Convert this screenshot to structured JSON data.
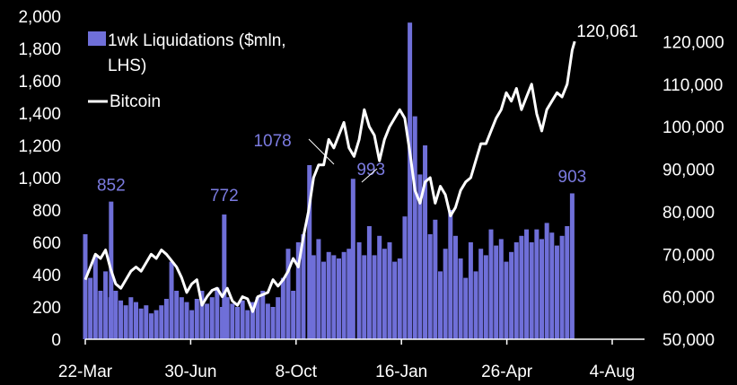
{
  "chart_data": {
    "type": "bar+line",
    "title": "",
    "x_tick_labels": [
      "22-Mar",
      "30-Jun",
      "8-Oct",
      "16-Jan",
      "26-Apr",
      "4-Aug"
    ],
    "y_left": {
      "ticks": [
        "0",
        "200",
        "400",
        "600",
        "800",
        "1,000",
        "1,200",
        "1,400",
        "1,600",
        "1,800",
        "2,000"
      ],
      "range": [
        0,
        2000
      ]
    },
    "y_right": {
      "ticks": [
        "50,000",
        "60,000",
        "70,000",
        "80,000",
        "90,000",
        "100,000",
        "110,000",
        "120,000"
      ],
      "range": [
        50000,
        126000
      ]
    },
    "legend": [
      {
        "label": "1wk Liquidations ($mln,",
        "label2": "LHS)",
        "color": "#6f6fd8",
        "kind": "bar"
      },
      {
        "label": "Bitcoin",
        "color": "#ffffff",
        "kind": "line"
      }
    ],
    "annotations": [
      {
        "text": "852",
        "x": 0.051
      },
      {
        "text": "772",
        "x": 0.274
      },
      {
        "text": "1078",
        "x": 0.442
      },
      {
        "text": "993",
        "x": 0.528
      },
      {
        "text": "903",
        "x": 0.96
      },
      {
        "text": "120,061",
        "x": 0.965
      }
    ],
    "series": [
      {
        "name": "1wk Liquidations ($mln, LHS)",
        "axis": "left",
        "x": [
          0.0,
          0.01,
          0.02,
          0.03,
          0.04,
          0.05,
          0.051,
          0.06,
          0.07,
          0.08,
          0.09,
          0.1,
          0.11,
          0.12,
          0.13,
          0.14,
          0.15,
          0.16,
          0.17,
          0.18,
          0.19,
          0.2,
          0.21,
          0.22,
          0.23,
          0.24,
          0.25,
          0.26,
          0.27,
          0.274,
          0.28,
          0.29,
          0.3,
          0.31,
          0.32,
          0.33,
          0.34,
          0.35,
          0.36,
          0.37,
          0.38,
          0.39,
          0.4,
          0.41,
          0.42,
          0.43,
          0.442,
          0.45,
          0.46,
          0.47,
          0.48,
          0.49,
          0.5,
          0.51,
          0.52,
          0.528,
          0.54,
          0.55,
          0.56,
          0.57,
          0.58,
          0.59,
          0.6,
          0.61,
          0.62,
          0.63,
          0.64,
          0.65,
          0.66,
          0.67,
          0.68,
          0.69,
          0.7,
          0.71,
          0.72,
          0.73,
          0.74,
          0.75,
          0.76,
          0.77,
          0.78,
          0.79,
          0.8,
          0.81,
          0.82,
          0.83,
          0.84,
          0.85,
          0.86,
          0.87,
          0.88,
          0.89,
          0.9,
          0.91,
          0.92,
          0.93,
          0.94,
          0.95,
          0.96
        ],
        "values": [
          650,
          380,
          520,
          300,
          420,
          260,
          852,
          300,
          240,
          210,
          260,
          230,
          190,
          210,
          160,
          180,
          210,
          250,
          480,
          300,
          260,
          230,
          180,
          250,
          300,
          220,
          260,
          320,
          200,
          772,
          260,
          220,
          200,
          240,
          180,
          230,
          260,
          300,
          220,
          200,
          260,
          380,
          560,
          300,
          600,
          650,
          1078,
          520,
          620,
          480,
          540,
          520,
          500,
          540,
          560,
          993,
          600,
          520,
          700,
          520,
          640,
          560,
          600,
          480,
          500,
          760,
          1960,
          1380,
          1020,
          1200,
          650,
          740,
          420,
          560,
          800,
          640,
          500,
          380,
          600,
          420,
          560,
          520,
          680,
          580,
          620,
          480,
          540,
          600,
          640,
          680,
          600,
          680,
          620,
          720,
          660,
          580,
          640,
          700,
          903
        ],
        "color": "#6f6fd8"
      },
      {
        "name": "Bitcoin",
        "axis": "right",
        "x": [
          0.0,
          0.01,
          0.02,
          0.03,
          0.04,
          0.05,
          0.06,
          0.07,
          0.08,
          0.09,
          0.1,
          0.11,
          0.12,
          0.13,
          0.14,
          0.15,
          0.16,
          0.17,
          0.18,
          0.19,
          0.2,
          0.21,
          0.22,
          0.23,
          0.24,
          0.25,
          0.26,
          0.27,
          0.28,
          0.29,
          0.3,
          0.31,
          0.32,
          0.33,
          0.34,
          0.35,
          0.36,
          0.37,
          0.38,
          0.39,
          0.4,
          0.41,
          0.42,
          0.43,
          0.44,
          0.45,
          0.46,
          0.47,
          0.48,
          0.49,
          0.5,
          0.51,
          0.52,
          0.53,
          0.54,
          0.55,
          0.56,
          0.57,
          0.58,
          0.59,
          0.6,
          0.61,
          0.62,
          0.63,
          0.64,
          0.65,
          0.66,
          0.67,
          0.68,
          0.69,
          0.7,
          0.71,
          0.72,
          0.73,
          0.74,
          0.75,
          0.76,
          0.77,
          0.78,
          0.79,
          0.8,
          0.81,
          0.82,
          0.83,
          0.84,
          0.85,
          0.86,
          0.87,
          0.88,
          0.89,
          0.9,
          0.91,
          0.92,
          0.93,
          0.94,
          0.95,
          0.96,
          0.965
        ],
        "values": [
          64000,
          67000,
          70000,
          69000,
          71000,
          66500,
          63000,
          62000,
          64000,
          66000,
          67000,
          66000,
          68000,
          70000,
          69000,
          71000,
          70000,
          68500,
          67000,
          64500,
          61000,
          63000,
          64000,
          58000,
          60000,
          61500,
          62000,
          60000,
          62000,
          59000,
          58000,
          60000,
          59500,
          56500,
          60000,
          60500,
          61000,
          64000,
          62500,
          64000,
          66000,
          69000,
          67000,
          74000,
          80000,
          88000,
          91000,
          91000,
          97000,
          95000,
          98000,
          101000,
          95000,
          93000,
          97000,
          104000,
          100000,
          98000,
          92000,
          97000,
          100000,
          102000,
          104000,
          102000,
          94000,
          85000,
          82000,
          87000,
          88000,
          82000,
          86000,
          84000,
          79000,
          81000,
          85000,
          87000,
          88000,
          92000,
          96000,
          96000,
          99000,
          102000,
          104000,
          108000,
          106000,
          109000,
          104000,
          107000,
          110000,
          103000,
          99000,
          104000,
          106000,
          108000,
          107000,
          110000,
          118000,
          120061
        ]
      }
    ]
  }
}
